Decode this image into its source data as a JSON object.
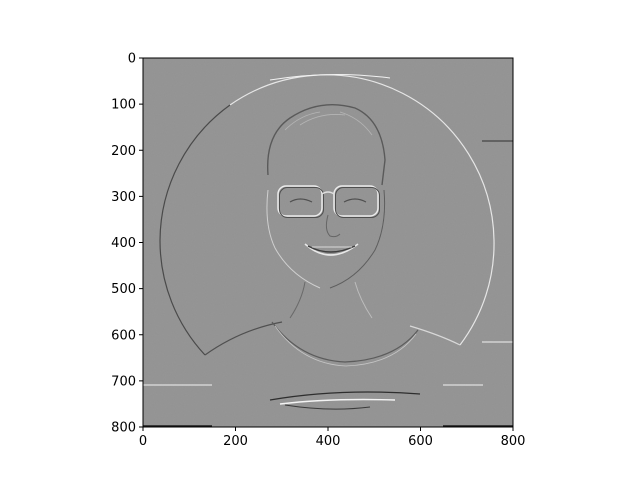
{
  "chart_data": {
    "type": "heatmap",
    "image_description": "edge-filtered (emboss) grayscale image of a smiling person with glasses inside a circular frame",
    "x_ticks": [
      "0",
      "200",
      "400",
      "600",
      "800"
    ],
    "x_tick_values": [
      0,
      200,
      400,
      600,
      800
    ],
    "y_ticks": [
      "0",
      "100",
      "200",
      "300",
      "400",
      "500",
      "600",
      "700",
      "800"
    ],
    "y_tick_values": [
      0,
      100,
      200,
      300,
      400,
      500,
      600,
      700,
      800
    ],
    "xlim": [
      0,
      800
    ],
    "ylim": [
      800,
      0
    ],
    "colormap": "gray",
    "background_value_color": "#929292",
    "grid": false,
    "title": "",
    "xlabel": "",
    "ylabel": ""
  }
}
